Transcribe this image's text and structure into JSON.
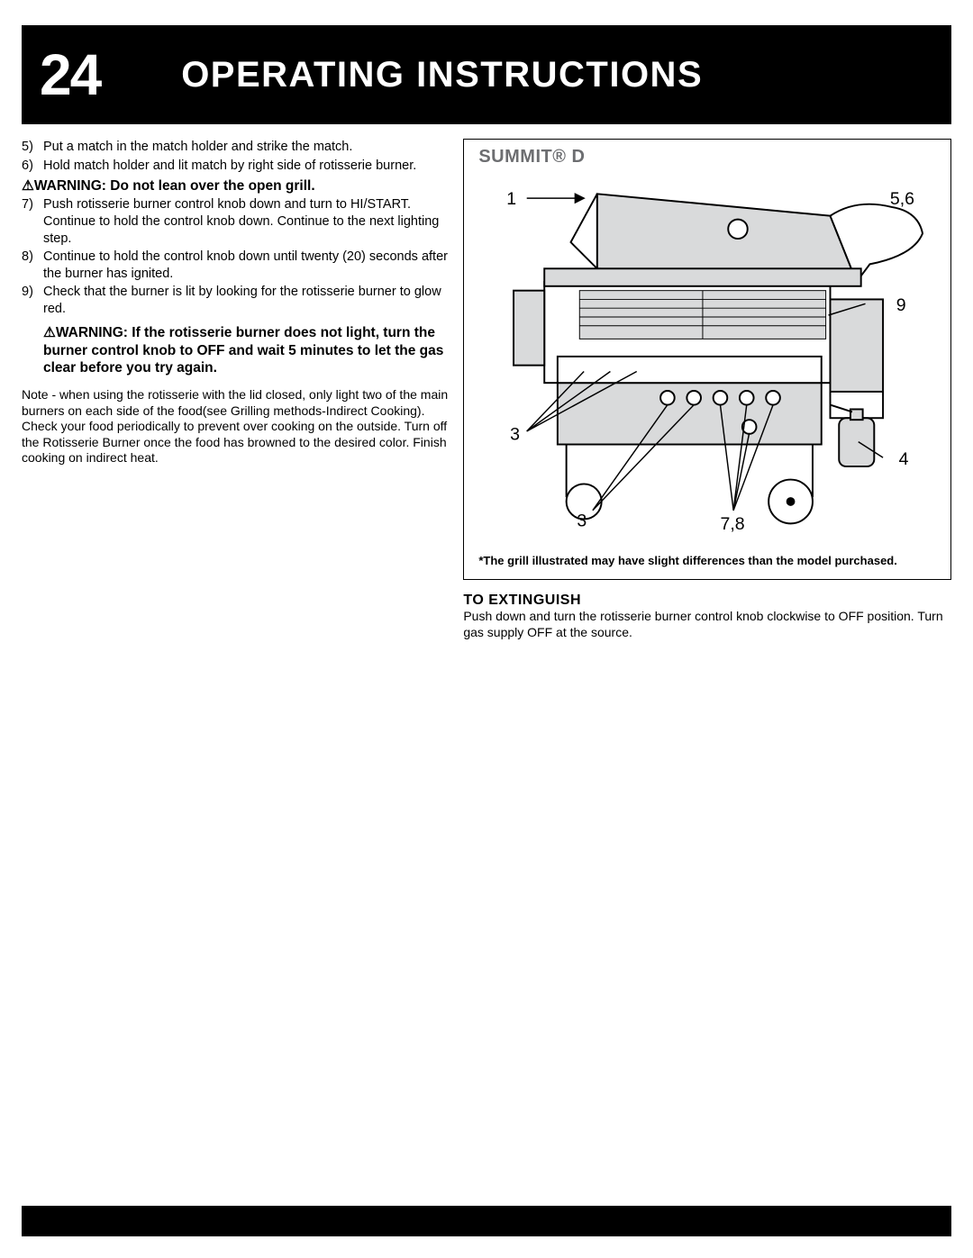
{
  "header": {
    "page_number": "24",
    "title": "OPERATING INSTRUCTIONS"
  },
  "left": {
    "steps_a": [
      {
        "n": "5)",
        "t": "Put a match in the match holder and strike the match."
      },
      {
        "n": "6)",
        "t": "Hold match holder and lit match by right side of rotisserie burner."
      }
    ],
    "warning1": "⚠WARNING: Do not lean over the open grill.",
    "steps_b": [
      {
        "n": "7)",
        "t": "Push rotisserie burner control knob down and turn to HI/START. Continue to hold the control knob down. Continue to the next lighting step."
      },
      {
        "n": "8)",
        "t": "Continue to hold the control knob down until twenty (20) seconds after the burner has ignited."
      },
      {
        "n": "9)",
        "t": "Check that the burner is lit by looking for the rotisserie burner to glow red."
      }
    ],
    "warning2": "⚠WARNING: If the rotisserie burner does not light, turn the burner control knob to OFF and wait 5 minutes to let the gas clear before you try again.",
    "note": "Note - when using the rotisserie with the lid closed, only light two of the main burners on each  side of the food(see  Grilling methods-Indirect Cooking). Check your food periodically to prevent over cooking on the outside.  Turn off the Rotisserie Burner once the food has browned to the desired color. Finish cooking on indirect heat."
  },
  "right": {
    "diagram_title": "SUMMIT® D",
    "callouts": {
      "c1": "1",
      "c56": "5,6",
      "c9": "9",
      "c3a": "3",
      "c4": "4",
      "c3b": "3",
      "c78": "7,8"
    },
    "caption": "*The grill illustrated may have slight differences than the model purchased.",
    "extinguish_heading": "TO EXTINGUISH",
    "extinguish_body": "Push down and turn the rotisserie burner control knob clockwise to OFF position. Turn gas supply OFF at the source."
  },
  "colors": {
    "black": "#000000",
    "gray_title": "#6d6e71",
    "illustration_fill": "#d9dadb"
  }
}
